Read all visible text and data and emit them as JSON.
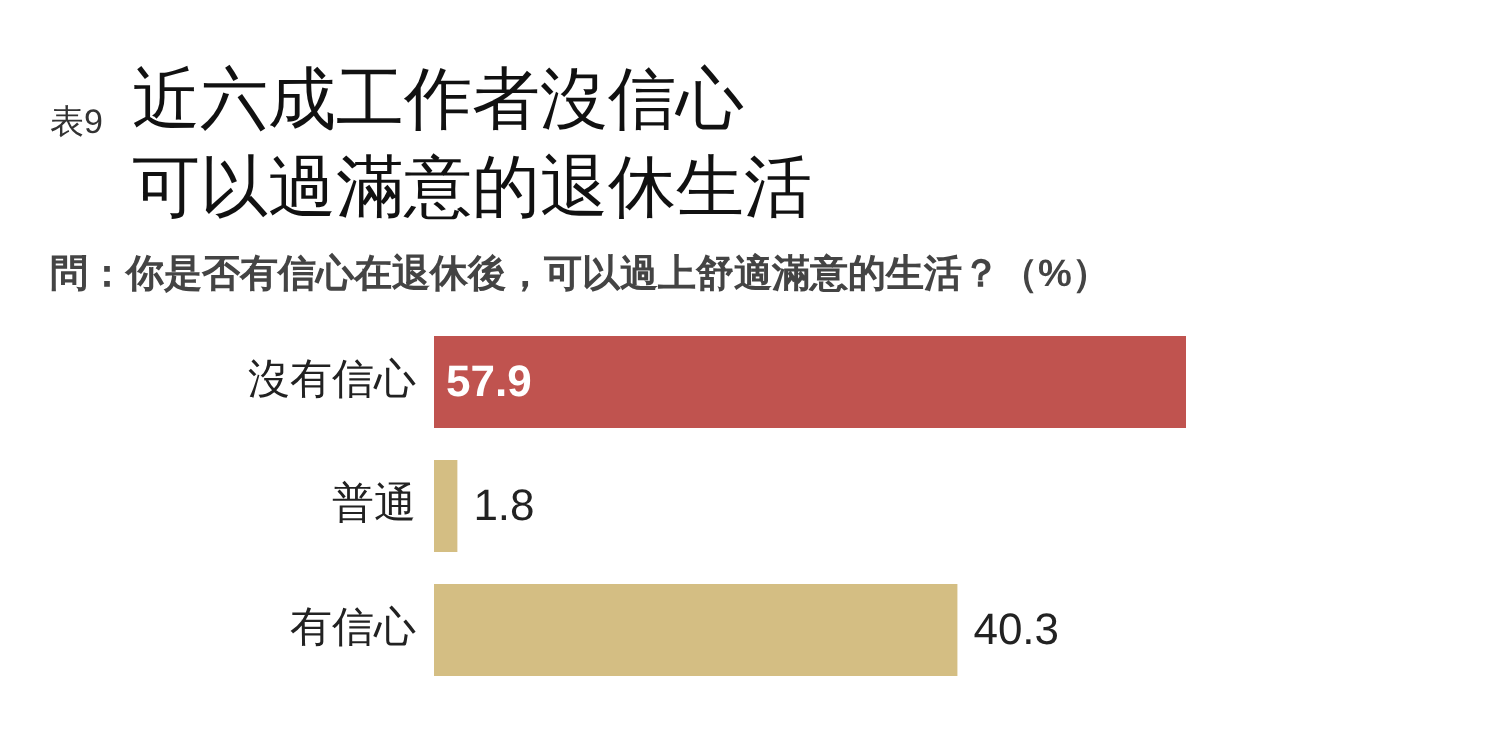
{
  "chart_data": {
    "type": "bar",
    "orientation": "horizontal",
    "title": "近六成工作者沒信心可以過滿意的退休生活",
    "subtitle": "問：你是否有信心在退休後，可以過上舒適滿意的生活？（%）",
    "annotations": [
      "表9"
    ],
    "categories": [
      "沒有信心",
      "普通",
      "有信心"
    ],
    "values": [
      57.9,
      1.8,
      40.3
    ],
    "colors": [
      "#c0534f",
      "#d4be83",
      "#d4be83"
    ],
    "data_labels": true,
    "relative": false
  }
}
